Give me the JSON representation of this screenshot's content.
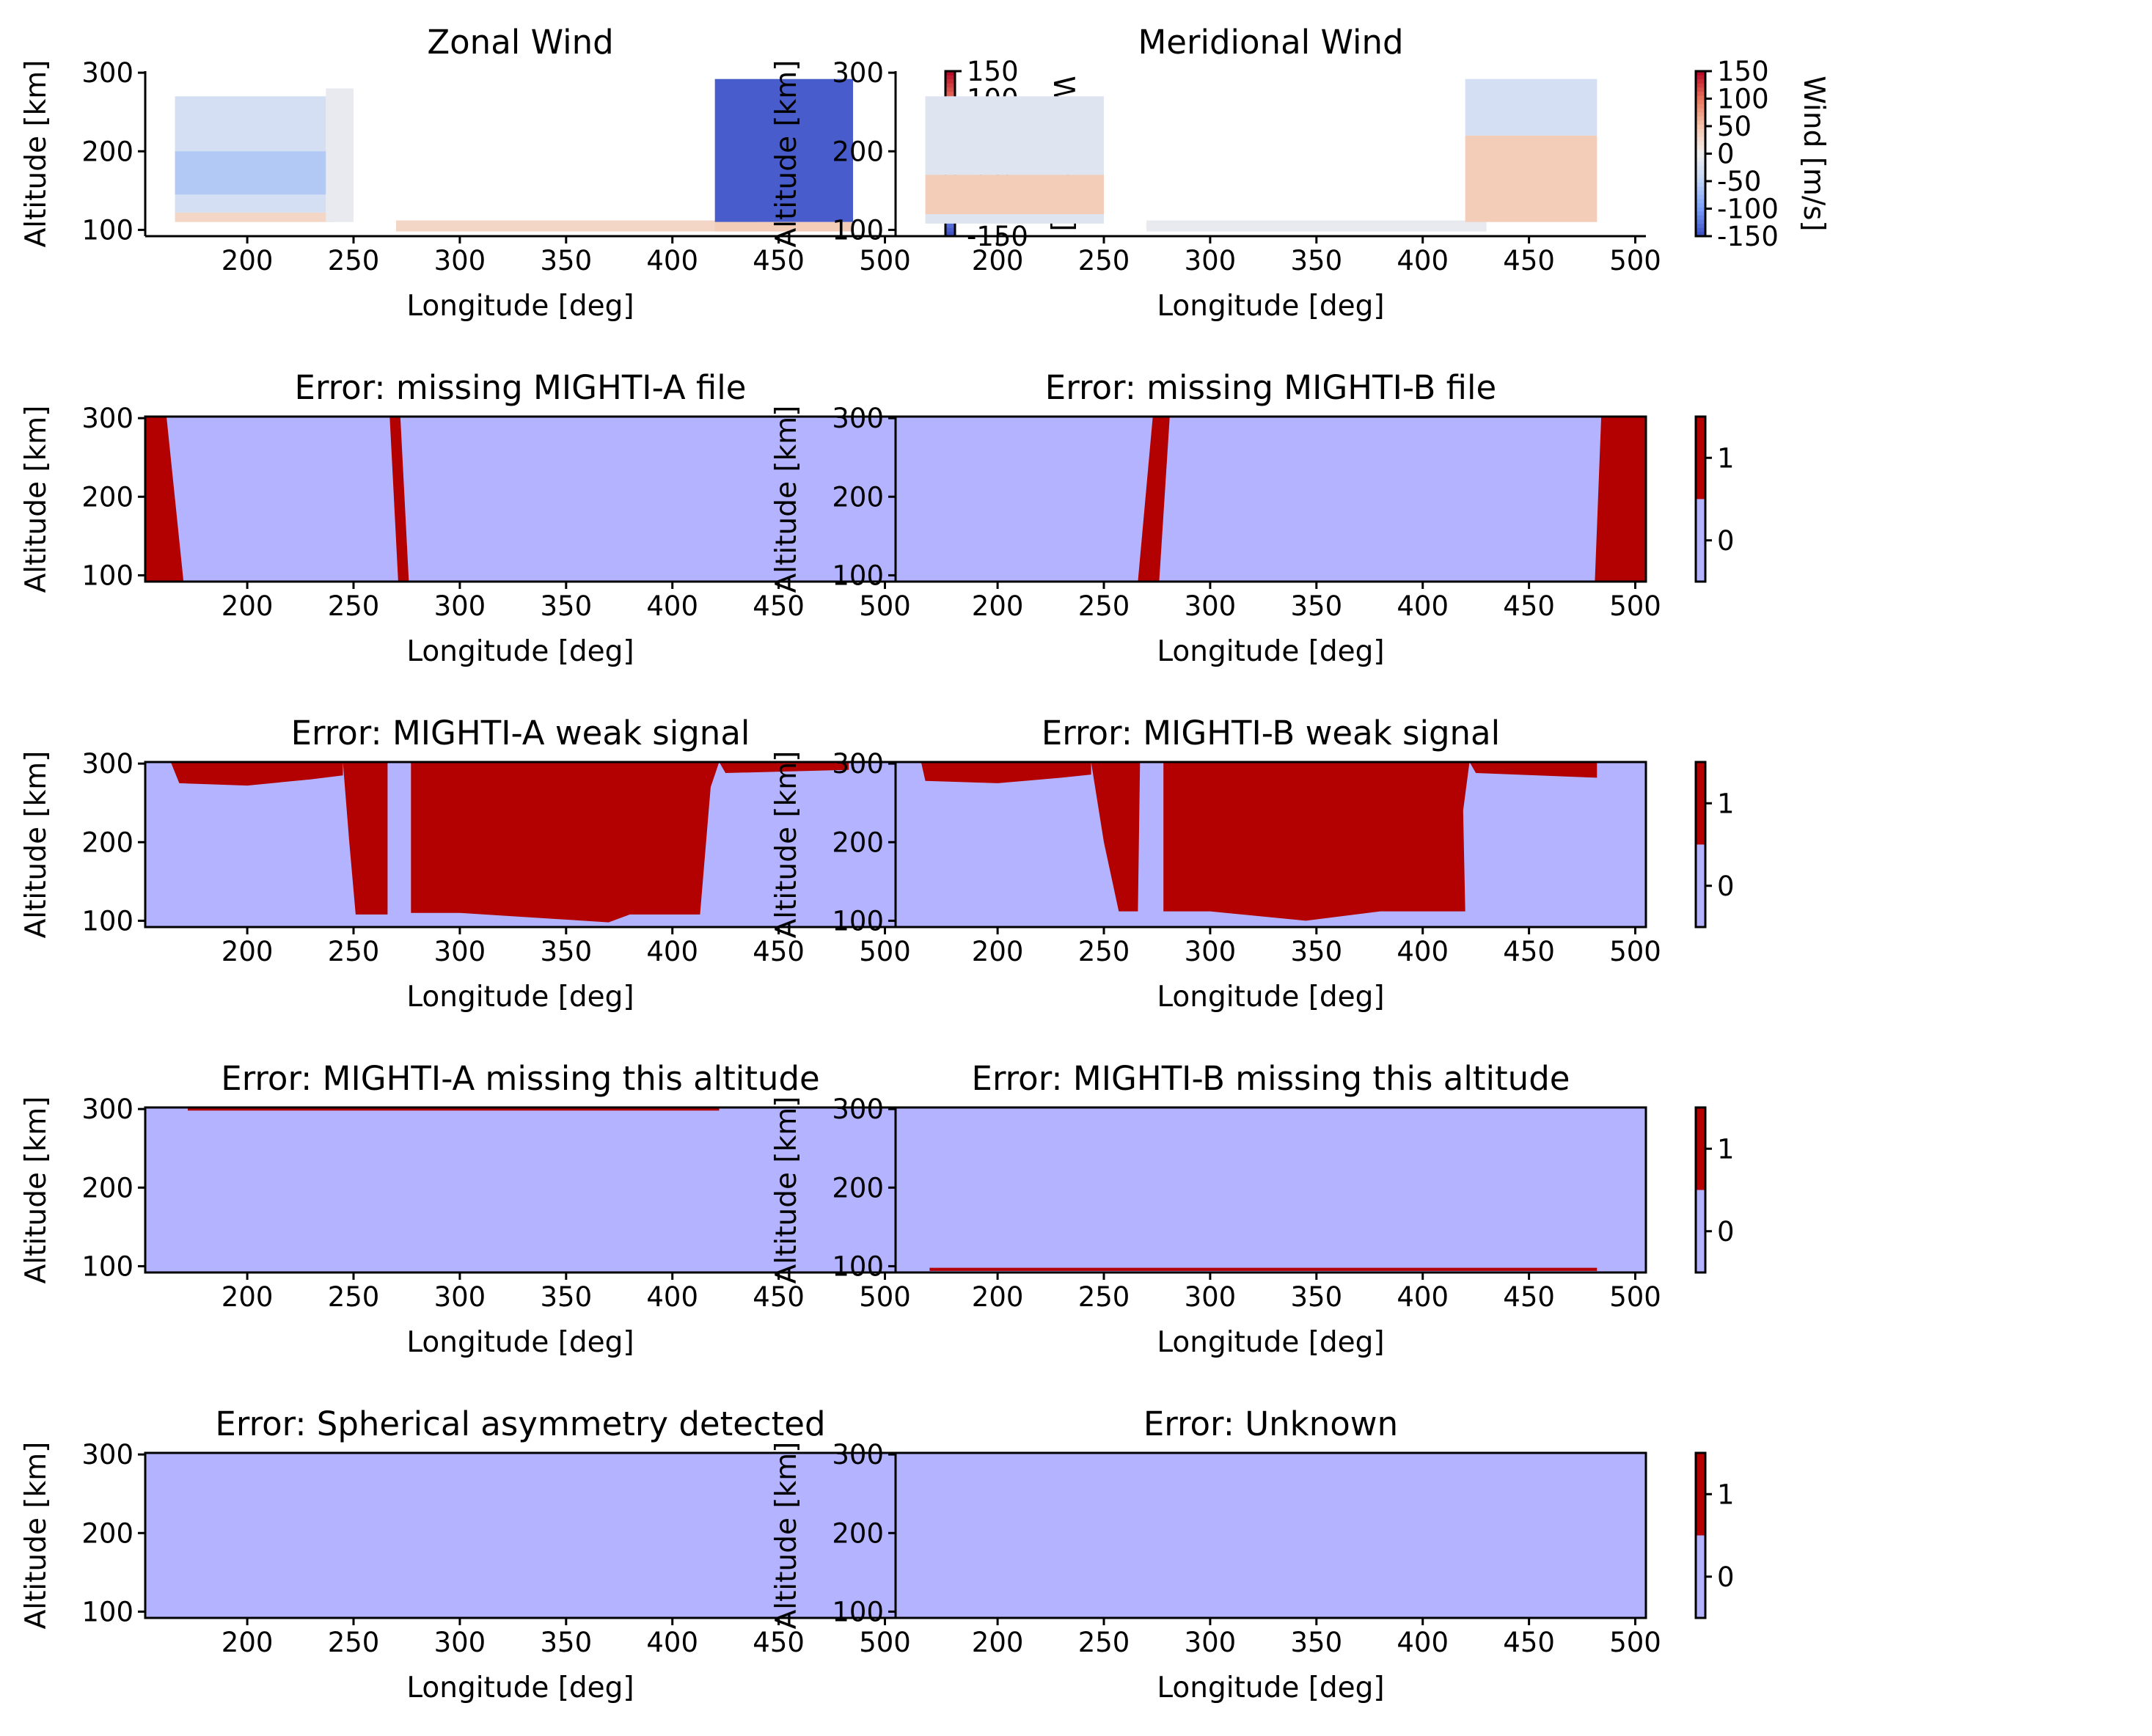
{
  "colors": {
    "zero_flag": "#b3b3ff",
    "one_flag": "#b30000",
    "wind_scale": [
      "#3b4cc0",
      "#7b9ff9",
      "#c0d4f5",
      "#f2f0ef",
      "#f5c4ac",
      "#e7745b",
      "#b40426"
    ]
  },
  "chart_data": [
    {
      "id": "zonal",
      "type": "heatmap",
      "title": "Zonal Wind",
      "xlabel": "Longitude [deg]",
      "ylabel": "Altitude [km]",
      "xlim": [
        152,
        505
      ],
      "ylim": [
        92,
        302
      ],
      "xticks": [
        200,
        250,
        300,
        350,
        400,
        450,
        500
      ],
      "yticks": [
        100,
        200,
        300
      ],
      "colorbar": {
        "label": "Wind [m/s]",
        "scale": "diverging-coolwarm",
        "range": [
          -150,
          150
        ],
        "ticks": [
          150,
          100,
          50,
          0,
          -50,
          -100,
          -150
        ]
      },
      "frame": "left-bottom",
      "regions": [
        {
          "x": [
            166,
            237
          ],
          "y": [
            122,
            270
          ],
          "value": -30
        },
        {
          "x": [
            166,
            237
          ],
          "y": [
            145,
            200
          ],
          "value": -60
        },
        {
          "x": [
            166,
            242
          ],
          "y": [
            110,
            122
          ],
          "value": 30
        },
        {
          "x": [
            237,
            250
          ],
          "y": [
            110,
            280
          ],
          "value": -10
        },
        {
          "x": [
            270,
            440
          ],
          "y": [
            98,
            112
          ],
          "value": 30
        },
        {
          "x": [
            420,
            485
          ],
          "y": [
            110,
            292
          ],
          "value": -140
        },
        {
          "x": [
            420,
            485
          ],
          "y": [
            98,
            110
          ],
          "value": 40
        }
      ]
    },
    {
      "id": "meridional",
      "type": "heatmap",
      "title": "Meridional Wind",
      "xlabel": "Longitude [deg]",
      "ylabel": "Altitude [km]",
      "xlim": [
        152,
        505
      ],
      "ylim": [
        92,
        302
      ],
      "xticks": [
        200,
        250,
        300,
        350,
        400,
        450,
        500
      ],
      "yticks": [
        100,
        200,
        300
      ],
      "colorbar": {
        "label": "Wind [m/s]",
        "scale": "diverging-coolwarm",
        "range": [
          -150,
          150
        ],
        "ticks": [
          150,
          100,
          50,
          0,
          -50,
          -100,
          -150
        ]
      },
      "frame": "left-bottom",
      "regions": [
        {
          "x": [
            166,
            250
          ],
          "y": [
            170,
            270
          ],
          "value": -20
        },
        {
          "x": [
            166,
            250
          ],
          "y": [
            120,
            170
          ],
          "value": 40
        },
        {
          "x": [
            166,
            250
          ],
          "y": [
            108,
            120
          ],
          "value": -20
        },
        {
          "x": [
            270,
            430
          ],
          "y": [
            98,
            112
          ],
          "value": -10
        },
        {
          "x": [
            420,
            482
          ],
          "y": [
            220,
            292
          ],
          "value": -30
        },
        {
          "x": [
            420,
            482
          ],
          "y": [
            110,
            220
          ],
          "value": 40
        }
      ]
    },
    {
      "id": "missA",
      "type": "heatmap",
      "title": "Error: missing MIGHTI-A file",
      "xlabel": "Longitude [deg]",
      "ylabel": "Altitude [km]",
      "xlim": [
        152,
        505
      ],
      "ylim": [
        92,
        302
      ],
      "xticks": [
        200,
        250,
        300,
        350,
        400,
        450,
        500
      ],
      "yticks": [
        100,
        200,
        300
      ],
      "colorbar": {
        "scale": "binary",
        "range": [
          -0.5,
          1.5
        ],
        "ticks": [
          0,
          1
        ]
      },
      "frame": "box",
      "flagged": [
        {
          "x": [
            152,
            162,
            170,
            152
          ],
          "y": [
            302,
            302,
            92,
            92
          ]
        },
        {
          "x": [
            267,
            272,
            276,
            271
          ],
          "y": [
            302,
            302,
            92,
            92
          ]
        }
      ]
    },
    {
      "id": "missB",
      "type": "heatmap",
      "title": "Error: missing MIGHTI-B file",
      "xlabel": "Longitude [deg]",
      "ylabel": "Altitude [km]",
      "xlim": [
        152,
        505
      ],
      "ylim": [
        92,
        302
      ],
      "xticks": [
        200,
        250,
        300,
        350,
        400,
        450,
        500
      ],
      "yticks": [
        100,
        200,
        300
      ],
      "colorbar": {
        "scale": "binary",
        "range": [
          -0.5,
          1.5
        ],
        "ticks": [
          0,
          1
        ]
      },
      "frame": "box",
      "flagged": [
        {
          "x": [
            273,
            281,
            276,
            266
          ],
          "y": [
            302,
            302,
            92,
            92
          ]
        },
        {
          "x": [
            484,
            505,
            505,
            481
          ],
          "y": [
            302,
            302,
            92,
            92
          ]
        }
      ]
    },
    {
      "id": "weakA",
      "type": "heatmap",
      "title": "Error: MIGHTI-A weak signal",
      "xlabel": "Longitude [deg]",
      "ylabel": "Altitude [km]",
      "xlim": [
        152,
        505
      ],
      "ylim": [
        92,
        302
      ],
      "xticks": [
        200,
        250,
        300,
        350,
        400,
        450,
        500
      ],
      "yticks": [
        100,
        200,
        300
      ],
      "colorbar": {
        "scale": "binary",
        "range": [
          -0.5,
          1.5
        ],
        "ticks": [
          0,
          1
        ]
      },
      "frame": "box",
      "flagged": [
        {
          "x": [
            164,
            168,
            200,
            230,
            245,
            245,
            164
          ],
          "y": [
            302,
            275,
            272,
            280,
            285,
            302,
            302
          ]
        },
        {
          "x": [
            245,
            266,
            266,
            251,
            248
          ],
          "y": [
            302,
            302,
            108,
            108,
            200
          ]
        },
        {
          "x": [
            277,
            422,
            418,
            413,
            380,
            370,
            300,
            277
          ],
          "y": [
            302,
            302,
            270,
            108,
            108,
            98,
            110,
            110
          ]
        },
        {
          "x": [
            422,
            483,
            483,
            425
          ],
          "y": [
            302,
            302,
            292,
            288
          ]
        }
      ]
    },
    {
      "id": "weakB",
      "type": "heatmap",
      "title": "Error: MIGHTI-B weak signal",
      "xlabel": "Longitude [deg]",
      "ylabel": "Altitude [km]",
      "xlim": [
        152,
        505
      ],
      "ylim": [
        92,
        302
      ],
      "xticks": [
        200,
        250,
        300,
        350,
        400,
        450,
        500
      ],
      "yticks": [
        100,
        200,
        300
      ],
      "colorbar": {
        "scale": "binary",
        "range": [
          -0.5,
          1.5
        ],
        "ticks": [
          0,
          1
        ]
      },
      "frame": "box",
      "flagged": [
        {
          "x": [
            164,
            166,
            200,
            230,
            244,
            244,
            164
          ],
          "y": [
            302,
            278,
            275,
            282,
            286,
            302,
            302
          ]
        },
        {
          "x": [
            244,
            267,
            266,
            257,
            250
          ],
          "y": [
            302,
            302,
            112,
            112,
            200
          ]
        },
        {
          "x": [
            278,
            422,
            419,
            420,
            380,
            345,
            300,
            278
          ],
          "y": [
            302,
            302,
            240,
            112,
            112,
            100,
            112,
            112
          ]
        },
        {
          "x": [
            422,
            482,
            482,
            425
          ],
          "y": [
            302,
            302,
            282,
            288
          ]
        }
      ]
    },
    {
      "id": "altA",
      "type": "heatmap",
      "title": "Error: MIGHTI-A missing this altitude",
      "xlabel": "Longitude [deg]",
      "ylabel": "Altitude [km]",
      "xlim": [
        152,
        505
      ],
      "ylim": [
        92,
        302
      ],
      "xticks": [
        200,
        250,
        300,
        350,
        400,
        450,
        500
      ],
      "yticks": [
        100,
        200,
        300
      ],
      "colorbar": {
        "scale": "binary",
        "range": [
          -0.5,
          1.5
        ],
        "ticks": [
          0,
          1
        ]
      },
      "frame": "box",
      "flagged": [
        {
          "x": [
            172,
            422,
            422,
            172
          ],
          "y": [
            302,
            302,
            298,
            298
          ]
        }
      ]
    },
    {
      "id": "altB",
      "type": "heatmap",
      "title": "Error: MIGHTI-B missing this altitude",
      "xlabel": "Longitude [deg]",
      "ylabel": "Altitude [km]",
      "xlim": [
        152,
        505
      ],
      "ylim": [
        92,
        302
      ],
      "xticks": [
        200,
        250,
        300,
        350,
        400,
        450,
        500
      ],
      "yticks": [
        100,
        200,
        300
      ],
      "colorbar": {
        "scale": "binary",
        "range": [
          -0.5,
          1.5
        ],
        "ticks": [
          0,
          1
        ]
      },
      "frame": "box",
      "flagged": [
        {
          "x": [
            168,
            482,
            482,
            168
          ],
          "y": [
            98,
            98,
            94,
            94
          ]
        }
      ]
    },
    {
      "id": "sphere",
      "type": "heatmap",
      "title": "Error: Spherical asymmetry detected",
      "xlabel": "Longitude [deg]",
      "ylabel": "Altitude [km]",
      "xlim": [
        152,
        505
      ],
      "ylim": [
        92,
        302
      ],
      "xticks": [
        200,
        250,
        300,
        350,
        400,
        450,
        500
      ],
      "yticks": [
        100,
        200,
        300
      ],
      "colorbar": {
        "scale": "binary",
        "range": [
          -0.5,
          1.5
        ],
        "ticks": [
          0,
          1
        ]
      },
      "frame": "box",
      "flagged": []
    },
    {
      "id": "unknown",
      "type": "heatmap",
      "title": "Error: Unknown",
      "xlabel": "Longitude [deg]",
      "ylabel": "Altitude [km]",
      "xlim": [
        152,
        505
      ],
      "ylim": [
        92,
        302
      ],
      "xticks": [
        200,
        250,
        300,
        350,
        400,
        450,
        500
      ],
      "yticks": [
        100,
        200,
        300
      ],
      "colorbar": {
        "scale": "binary",
        "range": [
          -0.5,
          1.5
        ],
        "ticks": [
          0,
          1
        ]
      },
      "frame": "box",
      "flagged": []
    }
  ]
}
